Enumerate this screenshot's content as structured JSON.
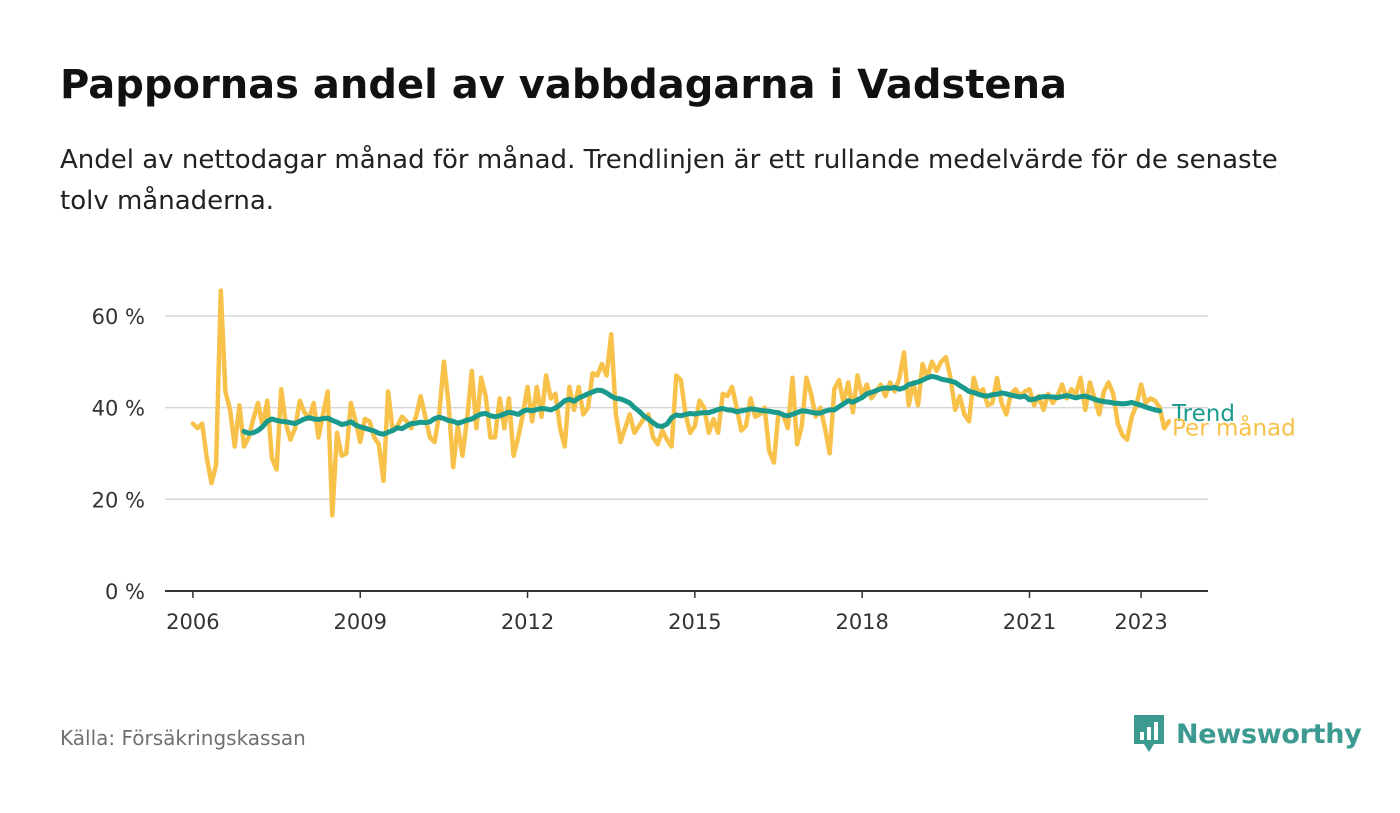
{
  "header": {
    "title": "Pappornas andel av vabbdagarna i Vadstena",
    "subtitle": "Andel av nettodagar månad för månad. Trendlinjen är ett rullande medelvärde för de senaste tolv månaderna."
  },
  "footer": {
    "source": "Källa: Försäkringskassan",
    "brand": "Newsworthy"
  },
  "colors": {
    "monthly": "#f7c14a",
    "trend": "#1a9a8c",
    "grid": "#d9d9d9",
    "axis": "#333333",
    "brand": "#3c9a91"
  },
  "chart_data": {
    "type": "line",
    "ylim": [
      0,
      70
    ],
    "yticks": [
      0,
      20,
      40,
      60
    ],
    "ytick_labels": [
      "0 %",
      "20 %",
      "40 %",
      "60 %"
    ],
    "xlim": [
      2005.5,
      2024.2
    ],
    "xticks": [
      2006,
      2009,
      2012,
      2015,
      2018,
      2021,
      2023
    ],
    "xtick_labels": [
      "2006",
      "2009",
      "2012",
      "2015",
      "2018",
      "2021",
      "2023"
    ],
    "grid": true,
    "series": [
      {
        "name": "Per månad",
        "x_start": 2006.0,
        "x_step": 0.0833333,
        "values": [
          36.5,
          35.5,
          36.5,
          29,
          23.5,
          27.5,
          65.5,
          43.5,
          39.5,
          31.5,
          40.5,
          31.5,
          33.5,
          37.5,
          41,
          36,
          41.5,
          29,
          26.5,
          44,
          36.5,
          33,
          35.5,
          41.5,
          39,
          37.5,
          41,
          33.5,
          38.5,
          43.5,
          16.5,
          34.5,
          29.5,
          30,
          41,
          37,
          32.5,
          37.5,
          37,
          33.5,
          32,
          24,
          43.5,
          35,
          36,
          38,
          37,
          35.5,
          38,
          42.5,
          38,
          33.5,
          32.5,
          38.5,
          50,
          41,
          27,
          36,
          29.5,
          37.5,
          48,
          35.5,
          46.5,
          42.5,
          33.5,
          33.5,
          42,
          35.5,
          42,
          29.5,
          33.5,
          38.5,
          44.5,
          37,
          44.5,
          38,
          47,
          42,
          43,
          35.5,
          31.5,
          44.5,
          39.5,
          44.5,
          38.5,
          40,
          47.5,
          47,
          49.5,
          47,
          56,
          38.5,
          32.5,
          35.5,
          38.5,
          34.5,
          36,
          37.5,
          38.5,
          33.5,
          32,
          35,
          33,
          31.5,
          47,
          46,
          38.5,
          34.5,
          36,
          41.5,
          40,
          34.5,
          37.5,
          34.5,
          43,
          42.5,
          44.5,
          40,
          35,
          36,
          42,
          38,
          38.5,
          40,
          30.5,
          28,
          39,
          38.5,
          35.5,
          46.5,
          32,
          36,
          46.5,
          43,
          38,
          40,
          35.5,
          30,
          44,
          46,
          41,
          45.5,
          39,
          47,
          42.5,
          45,
          42,
          43.5,
          45,
          42.5,
          45.5,
          43.5,
          46.5,
          52,
          40.5,
          45.5,
          40.5,
          49.5,
          46.5,
          50,
          48,
          50,
          51,
          46.5,
          39.5,
          42.5,
          38.5,
          37,
          46.5,
          43,
          44,
          40.5,
          41,
          46.5,
          41,
          38.5,
          43,
          44,
          42.5,
          43.5,
          44,
          40.5,
          42.5,
          39.5,
          43,
          41,
          42.5,
          45,
          42,
          44,
          43,
          46.5,
          39.5,
          45.5,
          42,
          38.5,
          43.5,
          45.5,
          43,
          36.5,
          34,
          33,
          38,
          40.5,
          45,
          41,
          42,
          41.5,
          40,
          35.5,
          37
        ]
      },
      {
        "name": "Trend",
        "x_start": 2006.9167,
        "x_step": 0.0833333,
        "values": [
          34.8,
          34.4,
          34.5,
          35,
          35.8,
          37,
          37.5,
          37.2,
          37,
          36.9,
          36.7,
          36.5,
          37,
          37.5,
          37.8,
          37.5,
          37.4,
          37.6,
          37.7,
          37.2,
          36.8,
          36.3,
          36.5,
          36.9,
          36.2,
          35.8,
          35.5,
          35.2,
          34.9,
          34.4,
          34.2,
          34.6,
          35,
          35.6,
          35.4,
          36,
          36.5,
          36.6,
          36.8,
          36.7,
          36.9,
          37.6,
          37.9,
          37.6,
          37.2,
          37,
          36.6,
          36.9,
          37.3,
          37.5,
          38.1,
          38.6,
          38.7,
          38.2,
          38,
          38.2,
          38.6,
          39,
          38.8,
          38.5,
          39.2,
          39.5,
          39.3,
          39.6,
          39.8,
          39.7,
          39.5,
          39.9,
          40.6,
          41.5,
          41.8,
          41.4,
          42.1,
          42.5,
          43,
          43.4,
          43.8,
          43.7,
          43.2,
          42.5,
          42,
          41.9,
          41.5,
          41,
          40,
          39.2,
          38.2,
          37.5,
          36.7,
          36,
          35.9,
          36.4,
          37.8,
          38.4,
          38.2,
          38.5,
          38.7,
          38.6,
          38.8,
          38.9,
          38.9,
          39.2,
          39.6,
          39.8,
          39.5,
          39.4,
          39.1,
          39.3,
          39.5,
          39.7,
          39.6,
          39.4,
          39.3,
          39.2,
          39,
          38.9,
          38.4,
          38.2,
          38.5,
          38.9,
          39.3,
          39.2,
          39,
          38.8,
          38.8,
          39.2,
          39.5,
          39.5,
          40.2,
          40.8,
          41.5,
          41.2,
          41.7,
          42.2,
          43,
          43.3,
          43.7,
          44.1,
          44.3,
          44.2,
          44.4,
          44,
          44.3,
          45,
          45.3,
          45.6,
          46,
          46.5,
          46.8,
          46.6,
          46.2,
          46,
          45.8,
          45.5,
          44.8,
          44.2,
          43.5,
          43.3,
          42.9,
          42.6,
          42.5,
          42.8,
          42.9,
          43.2,
          43,
          42.7,
          42.5,
          42.3,
          42.5,
          41.7,
          41.8,
          42.2,
          42.4,
          42.4,
          42.3,
          42.2,
          42.4,
          42.6,
          42.4,
          42.1,
          42.4,
          42.5,
          42.2,
          41.8,
          41.5,
          41.3,
          41.2,
          41,
          40.9,
          40.8,
          40.9,
          41.1,
          40.8,
          40.5,
          40.1,
          39.8,
          39.5,
          39.3
        ]
      }
    ]
  }
}
